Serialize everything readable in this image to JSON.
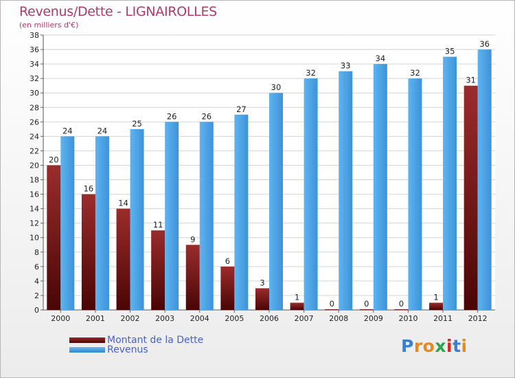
{
  "title": "Revenus/Dette - LIGNAIROLLES",
  "subtitle": "(en milliers d'€)",
  "colors": {
    "debt": "#7a1a1a",
    "revenue": "#4ea3e6",
    "title": "#b03a6a",
    "legend_text": "#4a5fd0"
  },
  "legend": [
    {
      "label": "Montant de la Dette",
      "color": "#6b0f0f"
    },
    {
      "label": "Revenus",
      "color": "#4ea3e6"
    }
  ],
  "logo": {
    "text": "Proxiti"
  },
  "chart_data": {
    "type": "bar",
    "title": "Revenus/Dette - LIGNAIROLLES",
    "subtitle": "(en milliers d'€)",
    "categories": [
      "2000",
      "2001",
      "2002",
      "2003",
      "2004",
      "2005",
      "2006",
      "2007",
      "2008",
      "2009",
      "2010",
      "2011",
      "2012"
    ],
    "series": [
      {
        "name": "Montant de la Dette",
        "values": [
          20,
          16,
          14,
          11,
          9,
          6,
          3,
          1,
          0,
          0,
          0,
          1,
          31
        ]
      },
      {
        "name": "Revenus",
        "values": [
          24,
          24,
          25,
          26,
          26,
          27,
          30,
          32,
          33,
          34,
          32,
          35,
          36
        ]
      }
    ],
    "ylim": [
      0,
      38
    ],
    "yticks": [
      0,
      2,
      4,
      6,
      8,
      10,
      12,
      14,
      16,
      18,
      20,
      22,
      24,
      26,
      28,
      30,
      32,
      34,
      36,
      38
    ],
    "grid": true,
    "legend_position": "bottom-left"
  }
}
